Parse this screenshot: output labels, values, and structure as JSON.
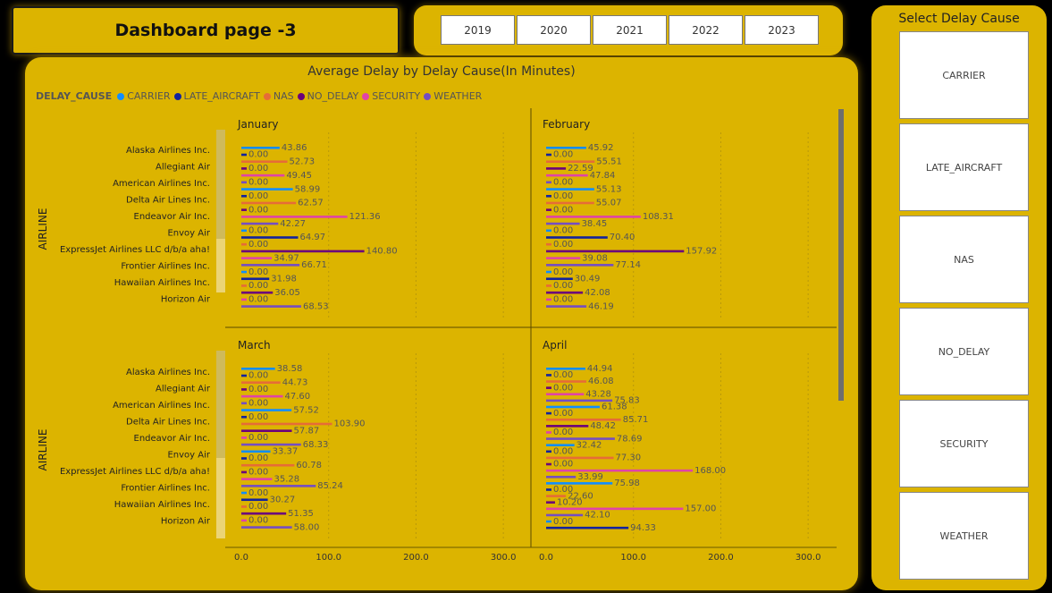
{
  "header": {
    "title": "Dashboard page -3"
  },
  "years": [
    "2019",
    "2020",
    "2021",
    "2022",
    "2023"
  ],
  "side": {
    "title": "Select Delay Cause",
    "causes": [
      "CARRIER",
      "LATE_AIRCRAFT",
      "NAS",
      "NO_DELAY",
      "SECURITY",
      "WEATHER"
    ]
  },
  "legend": {
    "title": "DELAY_CAUSE",
    "items": [
      {
        "name": "CARRIER",
        "color": "#118DFF"
      },
      {
        "name": "LATE_AIRCRAFT",
        "color": "#12239E"
      },
      {
        "name": "NAS",
        "color": "#E66C37"
      },
      {
        "name": "NO_DELAY",
        "color": "#6B007B"
      },
      {
        "name": "SECURITY",
        "color": "#E044A7"
      },
      {
        "name": "WEATHER",
        "color": "#744EC2"
      }
    ]
  },
  "chart_data": {
    "type": "bar",
    "orientation": "horizontal",
    "title": "Average Delay by Delay Cause(In Minutes)",
    "ylabel": "AIRLINE",
    "xlim": [
      0,
      350
    ],
    "xticks": [
      "0.0",
      "100.0",
      "200.0",
      "300.0"
    ],
    "categories": [
      "Alaska Airlines Inc.",
      "Allegiant Air",
      "American Airlines Inc.",
      "Delta Air Lines Inc.",
      "Endeavor Air Inc.",
      "Envoy Air",
      "ExpressJet Airlines LLC d/b/a aha!",
      "Frontier Airlines Inc.",
      "Hawaiian Airlines Inc.",
      "Horizon Air"
    ],
    "panels": [
      {
        "month": "January",
        "labels": [
          [
            "43.86",
            43.86
          ],
          [
            "0.00",
            0
          ],
          [
            "52.73",
            52.73
          ],
          [
            "0.00",
            0
          ],
          [
            "49.45",
            49.45
          ],
          [
            "0.00",
            0
          ],
          [
            "58.99",
            58.99
          ],
          [
            "0.00",
            0
          ],
          [
            "62.57",
            62.57
          ],
          [
            "0.00",
            0
          ],
          [
            "121.36",
            121.36
          ],
          [
            "42.27",
            42.27
          ],
          [
            "0.00",
            0
          ],
          [
            "64.97",
            64.97
          ],
          [
            "0.00",
            0
          ],
          [
            "140.80",
            140.8
          ],
          [
            "34.97",
            34.97
          ],
          [
            "66.71",
            66.71
          ],
          [
            "0.00",
            0
          ],
          [
            "31.98",
            31.98
          ],
          [
            "0.00",
            0
          ],
          [
            "36.05",
            36.05
          ],
          [
            "0.00",
            0
          ],
          [
            "68.53",
            68.53
          ]
        ]
      },
      {
        "month": "February",
        "labels": [
          [
            "45.92",
            45.92
          ],
          [
            "0.00",
            0
          ],
          [
            "55.51",
            55.51
          ],
          [
            "22.59",
            22.59
          ],
          [
            "47.84",
            47.84
          ],
          [
            "0.00",
            0
          ],
          [
            "55.13",
            55.13
          ],
          [
            "0.00",
            0
          ],
          [
            "55.07",
            55.07
          ],
          [
            "0.00",
            0
          ],
          [
            "108.31",
            108.31
          ],
          [
            "38.45",
            38.45
          ],
          [
            "0.00",
            0
          ],
          [
            "70.40",
            70.4
          ],
          [
            "0.00",
            0
          ],
          [
            "157.92",
            157.92
          ],
          [
            "39.08",
            39.08
          ],
          [
            "77.14",
            77.14
          ],
          [
            "0.00",
            0
          ],
          [
            "30.49",
            30.49
          ],
          [
            "0.00",
            0
          ],
          [
            "42.08",
            42.08
          ],
          [
            "0.00",
            0
          ],
          [
            "46.19",
            46.19
          ]
        ]
      },
      {
        "month": "March",
        "labels": [
          [
            "38.58",
            38.58
          ],
          [
            "0.00",
            0
          ],
          [
            "44.73",
            44.73
          ],
          [
            "0.00",
            0
          ],
          [
            "47.60",
            47.6
          ],
          [
            "0.00",
            0
          ],
          [
            "57.52",
            57.52
          ],
          [
            "0.00",
            0
          ],
          [
            "103.90",
            103.9
          ],
          [
            "57.87",
            57.87
          ],
          [
            "0.00",
            0
          ],
          [
            "68.33",
            68.33
          ],
          [
            "33.37",
            33.37
          ],
          [
            "0.00",
            0
          ],
          [
            "60.78",
            60.78
          ],
          [
            "0.00",
            0
          ],
          [
            "35.28",
            35.28
          ],
          [
            "85.24",
            85.24
          ],
          [
            "0.00",
            0
          ],
          [
            "30.27",
            30.27
          ],
          [
            "0.00",
            0
          ],
          [
            "51.35",
            51.35
          ],
          [
            "0.00",
            0
          ],
          [
            "58.00",
            58.0
          ]
        ]
      },
      {
        "month": "April",
        "labels": [
          [
            "44.94",
            44.94
          ],
          [
            "0.00",
            0
          ],
          [
            "46.08",
            46.08
          ],
          [
            "0.00",
            0
          ],
          [
            "43.28",
            43.28
          ],
          [
            "75.83",
            75.83
          ],
          [
            "61.38",
            61.38
          ],
          [
            "0.00",
            0
          ],
          [
            "85.71",
            85.71
          ],
          [
            "48.42",
            48.42
          ],
          [
            "0.00",
            0
          ],
          [
            "78.69",
            78.69
          ],
          [
            "32.42",
            32.42
          ],
          [
            "0.00",
            0
          ],
          [
            "77.30",
            77.3
          ],
          [
            "0.00",
            0
          ],
          [
            "168.00",
            168.0
          ],
          [
            "33.99",
            33.99
          ],
          [
            "75.98",
            75.98
          ],
          [
            "0.00",
            0
          ],
          [
            "22.60",
            22.6
          ],
          [
            "10.20",
            10.2
          ],
          [
            "157.00",
            157.0
          ],
          [
            "42.10",
            42.1
          ],
          [
            "0.00",
            0
          ],
          [
            "94.33",
            94.33
          ]
        ]
      }
    ]
  }
}
